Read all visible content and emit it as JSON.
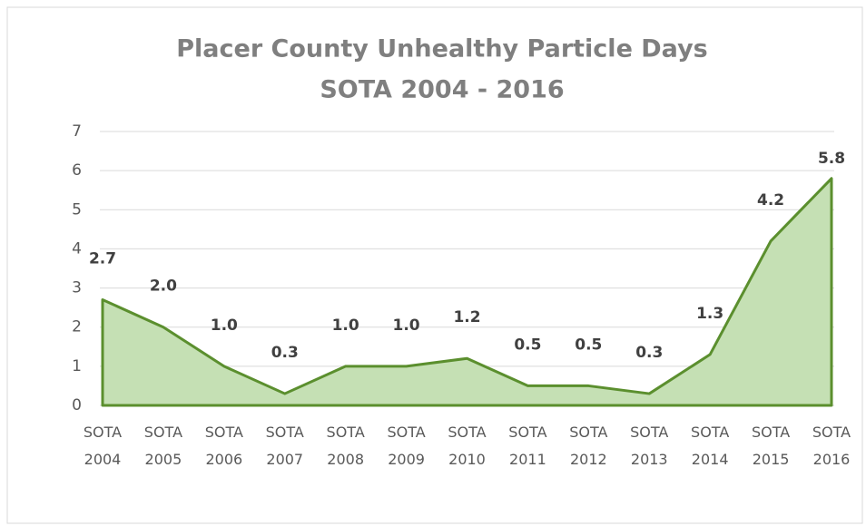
{
  "chart_data": {
    "type": "area",
    "title": "Placer County Unhealthy Particle Days",
    "subtitle": "SOTA 2004 - 2016",
    "categories": [
      "SOTA 2004",
      "SOTA 2005",
      "SOTA 2006",
      "SOTA 2007",
      "SOTA 2008",
      "SOTA 2009",
      "SOTA 2010",
      "SOTA 2011",
      "SOTA 2012",
      "SOTA 2013",
      "SOTA 2014",
      "SOTA 2015",
      "SOTA 2016"
    ],
    "values": [
      2.7,
      2.0,
      1.0,
      0.3,
      1.0,
      1.0,
      1.2,
      0.5,
      0.5,
      0.3,
      1.3,
      4.2,
      5.8
    ],
    "value_labels": [
      "2.7",
      "2.0",
      "1.0",
      "0.3",
      "1.0",
      "1.0",
      "1.2",
      "0.5",
      "0.5",
      "0.3",
      "1.3",
      "4.2",
      "5.8"
    ],
    "color": "#5b8f2e",
    "fill": "#c5e0b4",
    "ylim": [
      0,
      7
    ],
    "yticks": [
      0,
      1,
      2,
      3,
      4,
      5,
      6,
      7
    ],
    "grid": true
  }
}
